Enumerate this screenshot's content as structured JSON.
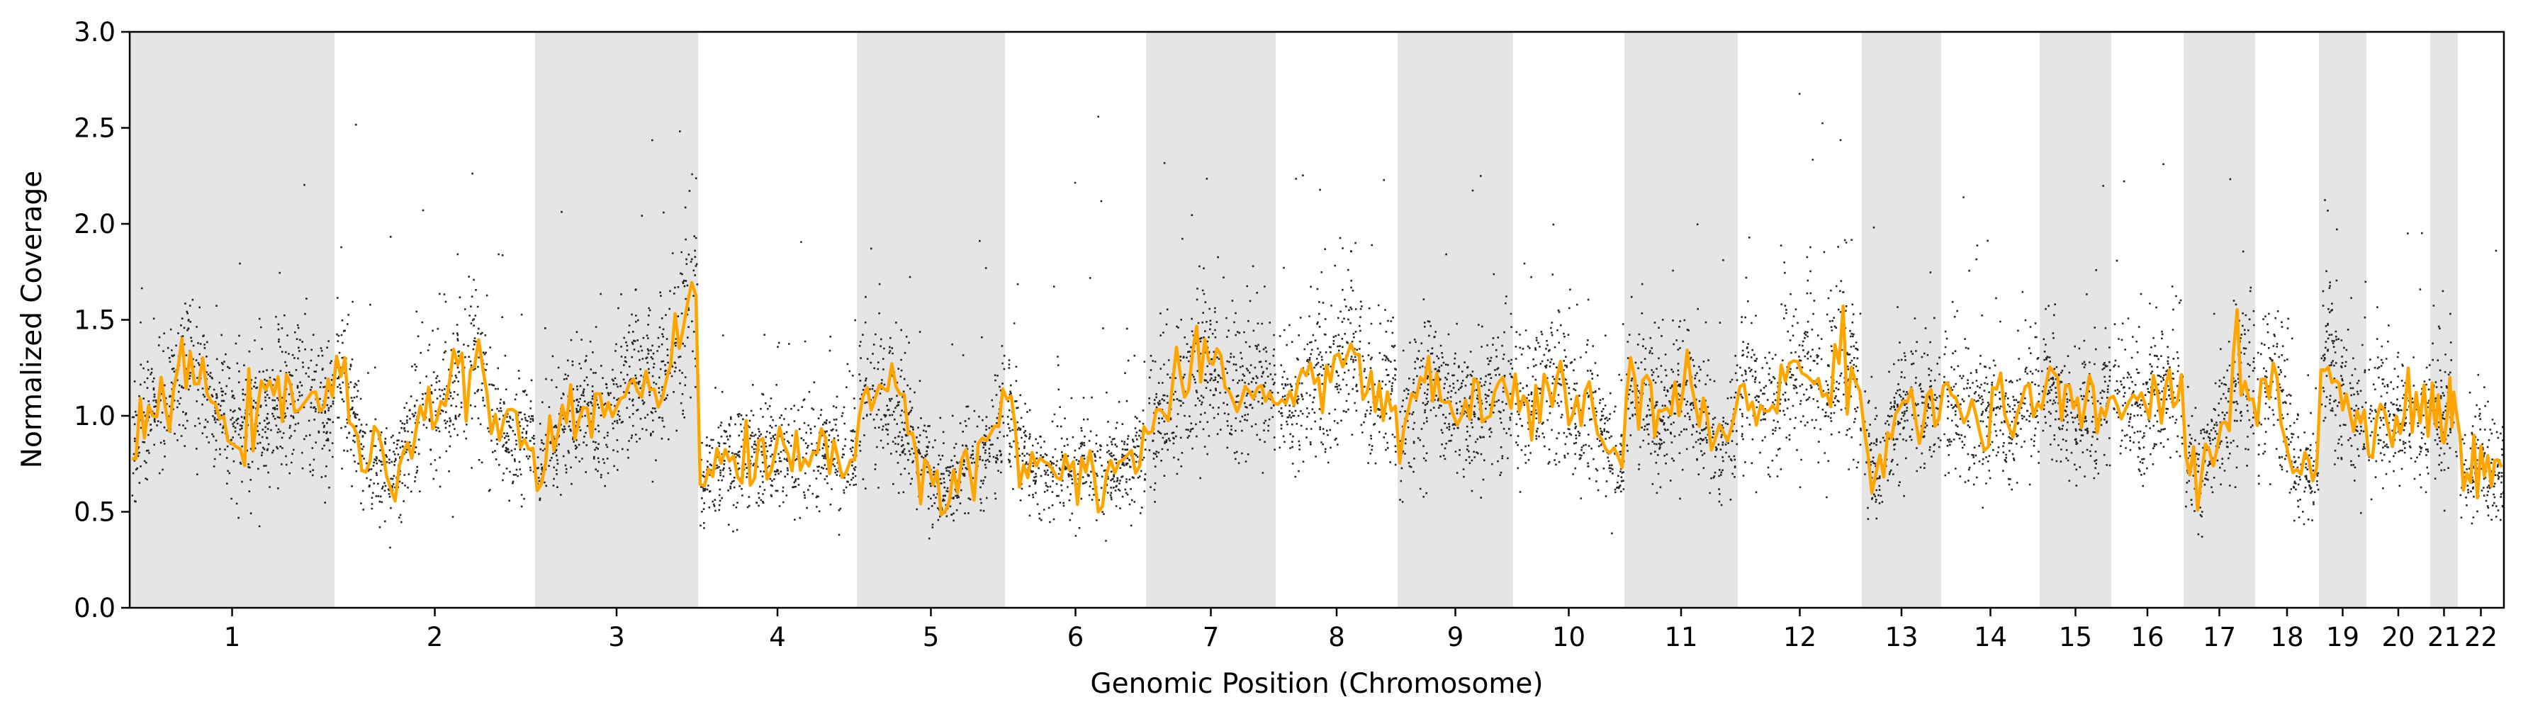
{
  "chart_data": {
    "type": "scatter",
    "title": "",
    "xlabel": "Genomic Position (Chromosome)",
    "ylabel": "Normalized Coverage",
    "ylim": [
      0,
      3
    ],
    "yticks": [
      "0.0",
      "0.5",
      "1.0",
      "1.5",
      "2.0",
      "2.5",
      "3.0"
    ],
    "legend": "none",
    "grid": false,
    "colors": {
      "points": "#000000",
      "trend_line": "#FFA500",
      "shade": "#E5E5E5"
    },
    "chromosomes": [
      {
        "label": "1",
        "shaded": true,
        "level": [
          0.85,
          1.05,
          1.25,
          1.0,
          0.95,
          1.05,
          1.15,
          1.0
        ]
      },
      {
        "label": "2",
        "shaded": false,
        "level": [
          1.3,
          0.75,
          0.7,
          1.05,
          1.1,
          1.3,
          0.85,
          0.9
        ]
      },
      {
        "label": "3",
        "shaded": true,
        "level": [
          0.65,
          0.95,
          1.0,
          1.05,
          1.15,
          1.2,
          1.3,
          1.65
        ]
      },
      {
        "label": "4",
        "shaded": false,
        "level": [
          0.65,
          0.75,
          0.8,
          0.8,
          0.78,
          0.8,
          0.82,
          0.78
        ]
      },
      {
        "label": "5",
        "shaded": true,
        "level": [
          1.1,
          1.15,
          1.0,
          0.75,
          0.6,
          0.75,
          0.8,
          1.05
        ]
      },
      {
        "label": "6",
        "shaded": false,
        "level": [
          1.0,
          0.75,
          0.7,
          0.72,
          0.75,
          0.7,
          0.75,
          0.8
        ]
      },
      {
        "label": "7",
        "shaded": true,
        "level": [
          0.95,
          1.05,
          1.15,
          1.25,
          1.2,
          1.1,
          1.15,
          1.2
        ]
      },
      {
        "label": "8",
        "shaded": false,
        "level": [
          1.0,
          1.1,
          1.2,
          1.25,
          1.35,
          1.2,
          1.05,
          1.05
        ]
      },
      {
        "label": "9",
        "shaded": true,
        "level": [
          0.85,
          1.05,
          1.2,
          1.1,
          1.0,
          1.05,
          1.1,
          1.1
        ]
      },
      {
        "label": "10",
        "shaded": false,
        "level": [
          1.1,
          1.05,
          1.15,
          1.1,
          0.95,
          1.05,
          0.85,
          0.75
        ]
      },
      {
        "label": "11",
        "shaded": true,
        "level": [
          1.1,
          1.15,
          1.0,
          1.05,
          1.15,
          0.95,
          0.85,
          1.0
        ]
      },
      {
        "label": "12",
        "shaded": false,
        "level": [
          1.15,
          1.1,
          1.05,
          1.2,
          1.25,
          1.15,
          1.35,
          1.1
        ]
      },
      {
        "label": "13",
        "shaded": true,
        "level": [
          0.9,
          0.7,
          0.85,
          1.0,
          1.05,
          1.0,
          1.05,
          1.0
        ]
      },
      {
        "label": "14",
        "shaded": false,
        "level": [
          1.05,
          1.1,
          1.0,
          0.95,
          1.05,
          0.9,
          1.05,
          1.1
        ]
      },
      {
        "label": "15",
        "shaded": true,
        "level": [
          1.1,
          1.25,
          1.05,
          1.0,
          0.95,
          1.05,
          1.0,
          1.05
        ]
      },
      {
        "label": "16",
        "shaded": false,
        "level": [
          1.05,
          1.1,
          1.0,
          1.05,
          1.1,
          1.1,
          1.15,
          1.1
        ]
      },
      {
        "label": "17",
        "shaded": true,
        "level": [
          0.8,
          0.65,
          0.75,
          0.9,
          1.0,
          1.15,
          1.2,
          1.1
        ]
      },
      {
        "label": "18",
        "shaded": false,
        "level": [
          1.0,
          1.2,
          1.3,
          1.0,
          0.8,
          0.7,
          0.7,
          0.75
        ]
      },
      {
        "label": "19",
        "shaded": true,
        "level": [
          1.2,
          1.4,
          1.15,
          1.05,
          1.1,
          1.0,
          1.05,
          1.05
        ]
      },
      {
        "label": "20",
        "shaded": false,
        "level": [
          1.0,
          1.05,
          1.0,
          0.95,
          1.0,
          1.05,
          1.0,
          1.0
        ]
      },
      {
        "label": "21",
        "shaded": true,
        "level": [
          1.1,
          1.05,
          1.0,
          0.95,
          1.0,
          1.0,
          1.0,
          1.0
        ]
      },
      {
        "label": "22",
        "shaded": false,
        "level": [
          0.8,
          0.7,
          0.75,
          0.8,
          0.75,
          0.7,
          0.75,
          0.7
        ]
      }
    ]
  }
}
